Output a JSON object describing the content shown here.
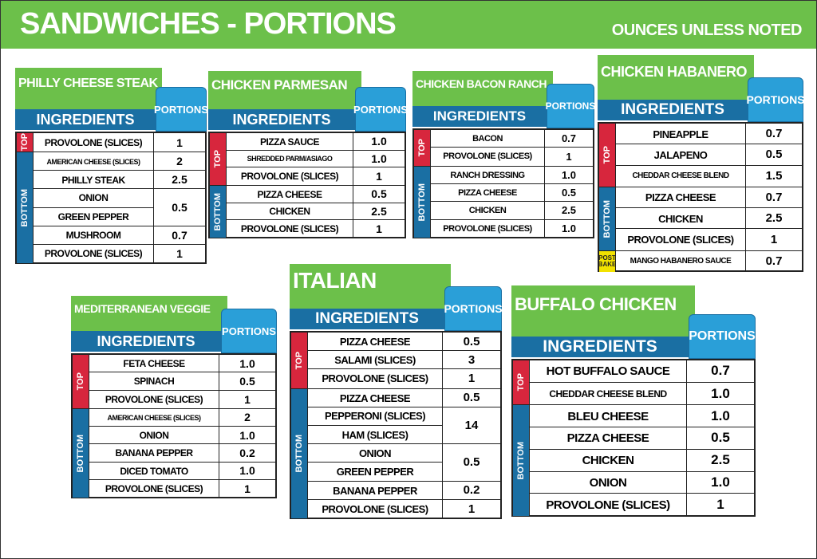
{
  "header": {
    "title": "SANDWICHES - PORTIONS",
    "note": "OUNCES UNLESS NOTED"
  },
  "cards": [
    {
      "title": "PHILLY CHEESE STEAK",
      "ingredients_label": "INGREDIENTS",
      "portions_label": "PORTIONS",
      "sections": [
        {
          "label": "TOP",
          "rows": [
            {
              "name": "PROVOLONE (SLICES)",
              "portion": "1"
            }
          ]
        },
        {
          "label": "BOTTOM",
          "rows": [
            {
              "name": "AMERICAN CHEESE (SLICES)",
              "portion": "2"
            },
            {
              "name": "PHILLY STEAK",
              "portion": "2.5"
            },
            {
              "names": [
                "ONION",
                "GREEN PEPPER"
              ],
              "portion": "0.5"
            },
            {
              "name": "MUSHROOM",
              "portion": "0.7"
            },
            {
              "name": "PROVOLONE (SLICES)",
              "portion": "1"
            }
          ]
        }
      ]
    },
    {
      "title": "CHICKEN PARMESAN",
      "ingredients_label": "INGREDIENTS",
      "portions_label": "PORTIONS",
      "sections": [
        {
          "label": "TOP",
          "rows": [
            {
              "name": "PIZZA SAUCE",
              "portion": "1.0"
            },
            {
              "name": "SHREDDED PARM/ASIAGO",
              "portion": "1.0"
            },
            {
              "name": "PROVOLONE (SLICES)",
              "portion": "1"
            }
          ]
        },
        {
          "label": "BOTTOM",
          "rows": [
            {
              "name": "PIZZA CHEESE",
              "portion": "0.5"
            },
            {
              "name": "CHICKEN",
              "portion": "2.5"
            },
            {
              "name": "PROVOLONE (SLICES)",
              "portion": "1"
            }
          ]
        }
      ]
    },
    {
      "title": "CHICKEN BACON RANCH",
      "ingredients_label": "INGREDIENTS",
      "portions_label": "PORTIONS",
      "sections": [
        {
          "label": "TOP",
          "rows": [
            {
              "name": "BACON",
              "portion": "0.7"
            },
            {
              "name": "PROVOLONE (SLICES)",
              "portion": "1"
            }
          ]
        },
        {
          "label": "BOTTOM",
          "rows": [
            {
              "name": "RANCH DRESSING",
              "portion": "1.0"
            },
            {
              "name": "PIZZA CHEESE",
              "portion": "0.5"
            },
            {
              "name": "CHICKEN",
              "portion": "2.5"
            },
            {
              "name": "PROVOLONE (SLICES)",
              "portion": "1.0"
            }
          ]
        }
      ]
    },
    {
      "title": "CHICKEN HABANERO",
      "ingredients_label": "INGREDIENTS",
      "portions_label": "PORTIONS",
      "sections": [
        {
          "label": "TOP",
          "rows": [
            {
              "name": "PINEAPPLE",
              "portion": "0.7"
            },
            {
              "name": "JALAPENO",
              "portion": "0.5"
            },
            {
              "name": "CHEDDAR CHEESE BLEND",
              "portion": "1.5"
            }
          ]
        },
        {
          "label": "BOTTOM",
          "rows": [
            {
              "name": "PIZZA CHEESE",
              "portion": "0.7"
            },
            {
              "name": "CHICKEN",
              "portion": "2.5"
            },
            {
              "name": "PROVOLONE (SLICES)",
              "portion": "1"
            }
          ]
        },
        {
          "label": "POST BAKE",
          "rows": [
            {
              "name": "MANGO HABANERO SAUCE",
              "portion": "0.7"
            }
          ]
        }
      ]
    },
    {
      "title": "MEDITERRANEAN VEGGIE",
      "ingredients_label": "INGREDIENTS",
      "portions_label": "PORTIONS",
      "sections": [
        {
          "label": "TOP",
          "rows": [
            {
              "name": "FETA CHEESE",
              "portion": "1.0"
            },
            {
              "name": "SPINACH",
              "portion": "0.5"
            },
            {
              "name": "PROVOLONE (SLICES)",
              "portion": "1"
            }
          ]
        },
        {
          "label": "BOTTOM",
          "rows": [
            {
              "name": "AMERICAN CHEESE (SLICES)",
              "portion": "2"
            },
            {
              "name": "ONION",
              "portion": "1.0"
            },
            {
              "name": "BANANA PEPPER",
              "portion": "0.2"
            },
            {
              "name": "DICED TOMATO",
              "portion": "1.0"
            },
            {
              "name": "PROVOLONE (SLICES)",
              "portion": "1"
            }
          ]
        }
      ]
    },
    {
      "title": "ITALIAN",
      "ingredients_label": "INGREDIENTS",
      "portions_label": "PORTIONS",
      "sections": [
        {
          "label": "TOP",
          "rows": [
            {
              "name": "PIZZA CHEESE",
              "portion": "0.5"
            },
            {
              "name": "SALAMI (SLICES)",
              "portion": "3"
            },
            {
              "name": "PROVOLONE (SLICES)",
              "portion": "1"
            }
          ]
        },
        {
          "label": "BOTTOM",
          "rows": [
            {
              "name": "PIZZA CHEESE",
              "portion": "0.5"
            },
            {
              "names": [
                "PEPPERONI (SLICES)",
                "HAM (SLICES)"
              ],
              "portion": "14"
            },
            {
              "names": [
                "ONION",
                "GREEN PEPPER"
              ],
              "portion": "0.5"
            },
            {
              "name": "BANANA PEPPER",
              "portion": "0.2"
            },
            {
              "name": "PROVOLONE (SLICES)",
              "portion": "1"
            }
          ]
        }
      ]
    },
    {
      "title": "BUFFALO CHICKEN",
      "ingredients_label": "INGREDIENTS",
      "portions_label": "PORTIONS",
      "sections": [
        {
          "label": "TOP",
          "rows": [
            {
              "name": "HOT BUFFALO SAUCE",
              "portion": "0.7"
            },
            {
              "name": "CHEDDAR CHEESE BLEND",
              "portion": "1.0"
            }
          ]
        },
        {
          "label": "BOTTOM",
          "rows": [
            {
              "name": "BLEU CHEESE",
              "portion": "1.0"
            },
            {
              "name": "PIZZA CHEESE",
              "portion": "0.5"
            },
            {
              "name": "CHICKEN",
              "portion": "2.5"
            },
            {
              "name": "ONION",
              "portion": "1.0"
            },
            {
              "name": "PROVOLONE (SLICES)",
              "portion": "1"
            }
          ]
        }
      ]
    }
  ]
}
